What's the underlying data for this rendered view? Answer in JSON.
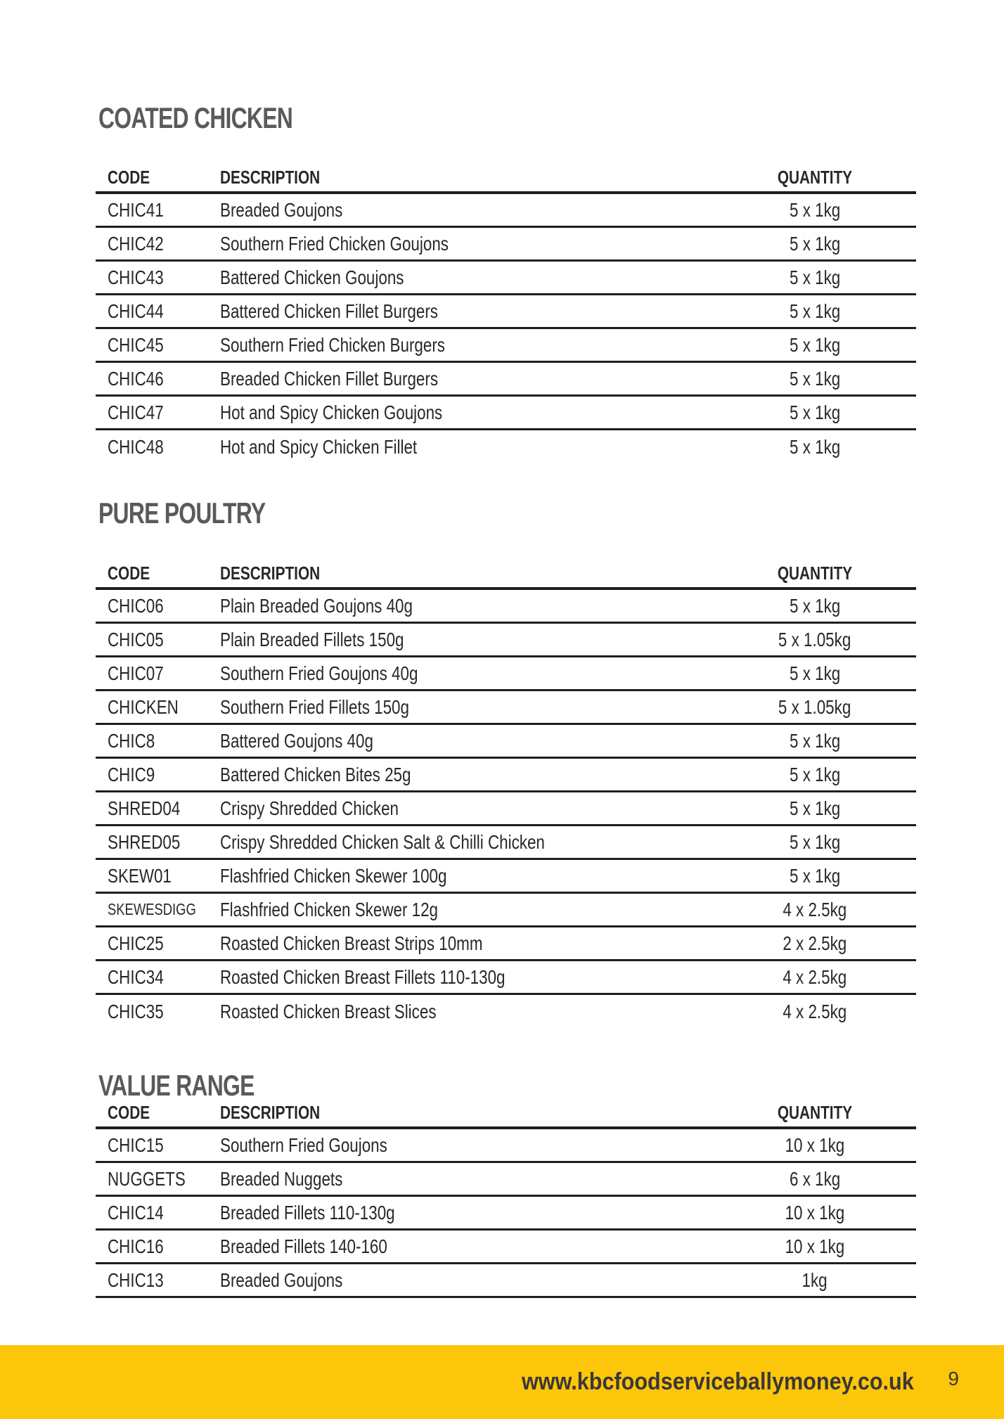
{
  "page": {
    "number": "9"
  },
  "footer": {
    "url": "www.kbcfoodserviceballymoney.co.uk"
  },
  "colors": {
    "accent_yellow": "#FCC60A",
    "heading_gray": "#595A5C",
    "text_dark": "#2B2728",
    "line_black": "#211D1E"
  },
  "sections": [
    {
      "title": "COATED CHICKEN",
      "columns": {
        "code": "CODE",
        "description": "DESCRIPTION",
        "quantity": "QUANTITY"
      },
      "last_row_border": false,
      "rows": [
        {
          "code": "CHIC41",
          "description": "Breaded Goujons",
          "quantity": "5 x 1kg"
        },
        {
          "code": "CHIC42",
          "description": "Southern Fried Chicken Goujons",
          "quantity": "5 x 1kg"
        },
        {
          "code": "CHIC43",
          "description": "Battered Chicken Goujons",
          "quantity": "5 x 1kg"
        },
        {
          "code": "CHIC44",
          "description": "Battered Chicken Fillet Burgers",
          "quantity": "5 x 1kg"
        },
        {
          "code": "CHIC45",
          "description": "Southern Fried Chicken Burgers",
          "quantity": "5 x 1kg"
        },
        {
          "code": "CHIC46",
          "description": "Breaded Chicken Fillet Burgers",
          "quantity": "5 x 1kg"
        },
        {
          "code": "CHIC47",
          "description": "Hot and Spicy Chicken Goujons",
          "quantity": "5 x 1kg"
        },
        {
          "code": "CHIC48",
          "description": "Hot and Spicy Chicken Fillet",
          "quantity": "5 x 1kg"
        }
      ]
    },
    {
      "title": "PURE POULTRY",
      "columns": {
        "code": "CODE",
        "description": "DESCRIPTION",
        "quantity": "QUANTITY"
      },
      "last_row_border": false,
      "rows": [
        {
          "code": "CHIC06",
          "description": "Plain Breaded Goujons 40g",
          "quantity": "5 x 1kg"
        },
        {
          "code": "CHIC05",
          "description": "Plain Breaded Fillets 150g",
          "quantity": "5 x 1.05kg"
        },
        {
          "code": "CHIC07",
          "description": "Southern Fried Goujons 40g",
          "quantity": "5 x 1kg"
        },
        {
          "code": "CHICKEN",
          "description": "Southern Fried Fillets 150g",
          "quantity": "5 x 1.05kg"
        },
        {
          "code": "CHIC8",
          "description": "Battered Goujons 40g",
          "quantity": "5 x 1kg"
        },
        {
          "code": "CHIC9",
          "description": "Battered Chicken Bites 25g",
          "quantity": "5 x 1kg"
        },
        {
          "code": "SHRED04",
          "description": "Crispy Shredded Chicken",
          "quantity": "5 x 1kg"
        },
        {
          "code": "SHRED05",
          "description": "Crispy Shredded Chicken Salt & Chilli Chicken",
          "quantity": "5 x 1kg"
        },
        {
          "code": "SKEW01",
          "description": "Flashfried Chicken Skewer 100g",
          "quantity": "5 x 1kg"
        },
        {
          "code": "SKEWESDIGG",
          "description": "Flashfried Chicken Skewer 12g",
          "quantity": "4 x 2.5kg"
        },
        {
          "code": "CHIC25",
          "description": "Roasted Chicken Breast Strips 10mm",
          "quantity": "2 x 2.5kg"
        },
        {
          "code": "CHIC34",
          "description": "Roasted Chicken Breast Fillets 110-130g",
          "quantity": "4 x 2.5kg"
        },
        {
          "code": "CHIC35",
          "description": "Roasted Chicken Breast Slices",
          "quantity": "4 x 2.5kg"
        }
      ]
    },
    {
      "title": "VALUE RANGE",
      "columns": {
        "code": "CODE",
        "description": "DESCRIPTION",
        "quantity": "QUANTITY"
      },
      "last_row_border": true,
      "rows": [
        {
          "code": "CHIC15",
          "description": "Southern Fried Goujons",
          "quantity": "10 x 1kg"
        },
        {
          "code": "NUGGETS",
          "description": "Breaded Nuggets",
          "quantity": "6 x 1kg"
        },
        {
          "code": "CHIC14",
          "description": "Breaded Fillets 110-130g",
          "quantity": "10 x 1kg"
        },
        {
          "code": "CHIC16",
          "description": "Breaded Fillets 140-160",
          "quantity": "10 x 1kg"
        },
        {
          "code": "CHIC13",
          "description": "Breaded Goujons",
          "quantity": "1kg"
        }
      ]
    }
  ]
}
